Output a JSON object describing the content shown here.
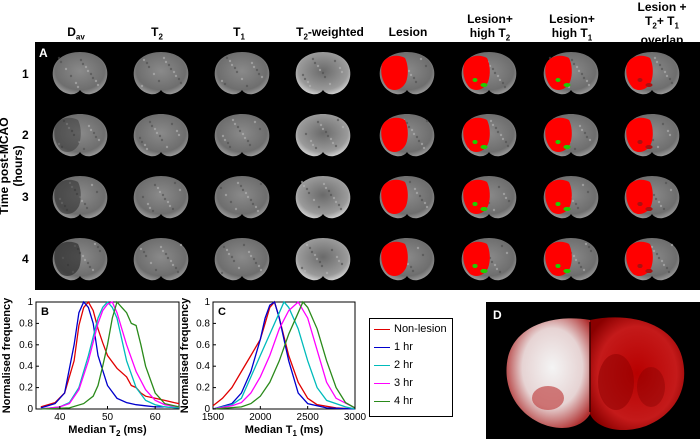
{
  "columns": [
    {
      "base": "D",
      "sub": "av",
      "tail": ""
    },
    {
      "base": "T",
      "sub": "2",
      "tail": ""
    },
    {
      "base": "T",
      "sub": "1",
      "tail": ""
    },
    {
      "base": "T",
      "sub": "2",
      "tail": "-weighted"
    },
    {
      "base": "Lesion",
      "sub": "",
      "tail": ""
    },
    {
      "base": "Lesion+",
      "line2": "high T",
      "sub": "2"
    },
    {
      "base": "Lesion+",
      "line2": "high T",
      "sub": "1"
    },
    {
      "base": "Lesion +",
      "line2a": "T",
      "sub2a": "2",
      "line2b": "+ T",
      "sub2b": "1",
      "line3": "overlap"
    }
  ],
  "panel_labels": {
    "a": "A",
    "b": "B",
    "c": "C",
    "d": "D"
  },
  "rows": [
    "1",
    "2",
    "3",
    "4"
  ],
  "y_axis_label": "Time post-MCAO (hours)",
  "colors": {
    "lesion": "#ff0000",
    "high": "#22cc00",
    "overlap_dark": "#aa1111"
  },
  "chart_data": [
    {
      "type": "line",
      "panel": "B",
      "xlabel_base": "Median T",
      "xlabel_sub": "2",
      "xlabel_tail": " (ms)",
      "ylabel": "Normalised frequency",
      "xlim": [
        35,
        65
      ],
      "ylim": [
        0,
        1
      ],
      "xticks": [
        "40",
        "50",
        "60"
      ],
      "yticks": [
        "0",
        "0.2",
        "0.4",
        "0.6",
        "0.8",
        "1"
      ],
      "series": [
        {
          "name": "Non-lesion",
          "color": "#e00000",
          "x": [
            36,
            39,
            41,
            43,
            44,
            45,
            46,
            47,
            48,
            49,
            50,
            52,
            54,
            55,
            56,
            57,
            58,
            60,
            62,
            64,
            65
          ],
          "y": [
            0.02,
            0.06,
            0.15,
            0.45,
            0.78,
            0.95,
            1.0,
            0.92,
            0.75,
            0.62,
            0.5,
            0.38,
            0.3,
            0.22,
            0.2,
            0.15,
            0.12,
            0.1,
            0.08,
            0.06,
            0.05
          ]
        },
        {
          "name": "1 hr",
          "color": "#0000cc",
          "x": [
            36,
            39,
            41,
            43,
            44,
            45,
            46,
            47,
            48,
            50,
            52,
            54,
            56,
            58,
            60,
            62,
            65
          ],
          "y": [
            0.01,
            0.05,
            0.15,
            0.6,
            0.9,
            1.0,
            0.95,
            0.8,
            0.5,
            0.22,
            0.1,
            0.06,
            0.04,
            0.03,
            0.02,
            0.02,
            0.01
          ]
        },
        {
          "name": "2 hr",
          "color": "#00bbbb",
          "x": [
            36,
            40,
            42,
            44,
            46,
            48,
            49,
            50,
            51,
            52,
            53,
            54,
            56,
            58,
            60,
            62,
            65
          ],
          "y": [
            0.0,
            0.02,
            0.06,
            0.2,
            0.5,
            0.85,
            0.95,
            1.0,
            0.95,
            0.85,
            0.65,
            0.45,
            0.2,
            0.08,
            0.04,
            0.02,
            0.01
          ]
        },
        {
          "name": "3 hr",
          "color": "#ff00ff",
          "x": [
            36,
            40,
            42,
            44,
            46,
            48,
            49,
            50,
            51,
            52,
            53,
            54,
            56,
            58,
            60,
            62,
            65
          ],
          "y": [
            0.0,
            0.02,
            0.05,
            0.18,
            0.45,
            0.8,
            0.92,
            0.98,
            1.0,
            0.9,
            0.75,
            0.6,
            0.35,
            0.18,
            0.08,
            0.04,
            0.02
          ]
        },
        {
          "name": "4 hr",
          "color": "#2a8a1a",
          "x": [
            36,
            42,
            45,
            47,
            48,
            49,
            50,
            51,
            52,
            53,
            54,
            55,
            56,
            57,
            58,
            60,
            62,
            65
          ],
          "y": [
            0.0,
            0.01,
            0.05,
            0.12,
            0.22,
            0.4,
            0.6,
            0.85,
            1.0,
            0.95,
            0.9,
            0.8,
            0.78,
            0.6,
            0.4,
            0.15,
            0.05,
            0.02
          ]
        }
      ]
    },
    {
      "type": "line",
      "panel": "C",
      "xlabel_base": "Median T",
      "xlabel_sub": "1",
      "xlabel_tail": " (ms)",
      "ylabel": "Normalised frequency",
      "xlim": [
        1500,
        3000
      ],
      "ylim": [
        0,
        1
      ],
      "xticks": [
        "1500",
        "2000",
        "2500",
        "3000"
      ],
      "yticks": [
        "0",
        "0.2",
        "0.4",
        "0.6",
        "0.8",
        "1"
      ],
      "series": [
        {
          "name": "Non-lesion",
          "color": "#e00000",
          "x": [
            1500,
            1600,
            1700,
            1800,
            1900,
            2000,
            2050,
            2100,
            2150,
            2200,
            2300,
            2400,
            2500,
            2600,
            2800,
            3000
          ],
          "y": [
            0.03,
            0.1,
            0.2,
            0.35,
            0.5,
            0.65,
            0.8,
            0.95,
            1.0,
            0.85,
            0.5,
            0.25,
            0.1,
            0.04,
            0.01,
            0.0
          ]
        },
        {
          "name": "1 hr",
          "color": "#0000cc",
          "x": [
            1500,
            1700,
            1800,
            1900,
            2000,
            2050,
            2100,
            2150,
            2200,
            2300,
            2400,
            2500,
            2700,
            3000
          ],
          "y": [
            0.0,
            0.05,
            0.15,
            0.35,
            0.65,
            0.85,
            0.97,
            1.0,
            0.85,
            0.45,
            0.15,
            0.05,
            0.01,
            0.0
          ]
        },
        {
          "name": "2 hr",
          "color": "#00bbbb",
          "x": [
            1500,
            1700,
            1800,
            1900,
            2000,
            2100,
            2200,
            2250,
            2300,
            2400,
            2500,
            2600,
            2700,
            2900,
            3000
          ],
          "y": [
            0.0,
            0.04,
            0.1,
            0.3,
            0.5,
            0.7,
            0.9,
            1.0,
            0.95,
            0.75,
            0.45,
            0.2,
            0.08,
            0.02,
            0.0
          ]
        },
        {
          "name": "3 hr",
          "color": "#ff00ff",
          "x": [
            1500,
            1700,
            1800,
            1900,
            2000,
            2100,
            2200,
            2300,
            2400,
            2500,
            2600,
            2700,
            2800,
            3000
          ],
          "y": [
            0.0,
            0.03,
            0.06,
            0.15,
            0.3,
            0.5,
            0.75,
            0.92,
            1.0,
            0.85,
            0.55,
            0.25,
            0.1,
            0.01
          ]
        },
        {
          "name": "4 hr",
          "color": "#2a8a1a",
          "x": [
            1500,
            1800,
            1900,
            2000,
            2100,
            2200,
            2300,
            2400,
            2450,
            2500,
            2600,
            2700,
            2800,
            2900,
            3000
          ],
          "y": [
            0.0,
            0.02,
            0.05,
            0.12,
            0.25,
            0.45,
            0.7,
            0.9,
            1.0,
            0.95,
            0.75,
            0.45,
            0.2,
            0.06,
            0.01
          ]
        }
      ]
    }
  ]
}
